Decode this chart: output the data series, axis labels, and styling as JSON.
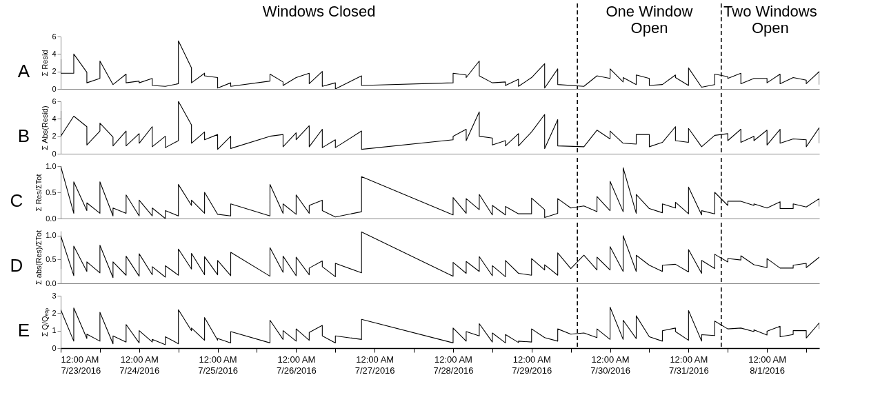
{
  "chart_data": [
    {
      "type": "line",
      "title": "A",
      "ylabel": "Σ Resid",
      "tick_labels": "y",
      "xlim": [
        "2016-07-23T00:00",
        "2016-08-01T16:00"
      ],
      "ylim": [
        0,
        6
      ],
      "yticks": [
        0,
        2,
        4,
        6
      ],
      "ref_lines": [
        {
          "axis": "x",
          "value": "2016-07-29T14:00",
          "line_style": "dashed",
          "color": "#000000"
        },
        {
          "axis": "x",
          "value": "2016-07-31T10:00",
          "line_style": "dashed",
          "color": "#000000"
        }
      ],
      "annotations": [
        "Windows Closed",
        "One Window Open",
        "Two Windows Open"
      ],
      "series": [
        {
          "color": "#000000",
          "x": [
            "2016-07-23T00:00",
            "2016-07-23T00:00",
            "2016-07-23T04:00",
            "2016-07-23T04:00",
            "2016-07-23T08:00",
            "2016-07-23T08:00",
            "2016-07-23T12:00",
            "2016-07-23T12:00",
            "2016-07-23T16:00",
            "2016-07-23T20:00",
            "2016-07-23T20:00",
            "2016-07-24T00:00",
            "2016-07-24T00:00",
            "2016-07-24T04:00",
            "2016-07-24T04:00",
            "2016-07-24T08:00",
            "2016-07-24T12:00",
            "2016-07-24T12:00",
            "2016-07-24T16:00",
            "2016-07-24T16:00",
            "2016-07-24T20:00",
            "2016-07-24T20:00",
            "2016-07-25T00:00",
            "2016-07-25T00:00",
            "2016-07-25T04:00",
            "2016-07-25T04:00",
            "2016-07-25T16:00",
            "2016-07-25T16:00",
            "2016-07-25T20:00",
            "2016-07-25T20:00",
            "2016-07-26T00:00",
            "2016-07-26T04:00",
            "2016-07-26T04:00",
            "2016-07-26T08:00",
            "2016-07-26T08:00",
            "2016-07-26T12:00",
            "2016-07-26T12:00",
            "2016-07-26T20:00",
            "2016-07-26T20:00",
            "2016-07-28T00:00",
            "2016-07-28T00:00",
            "2016-07-28T04:00",
            "2016-07-28T04:00",
            "2016-07-28T08:00",
            "2016-07-28T08:00",
            "2016-07-28T12:00",
            "2016-07-28T16:00",
            "2016-07-28T16:00",
            "2016-07-28T20:00",
            "2016-07-28T20:00",
            "2016-07-29T00:00",
            "2016-07-29T04:00",
            "2016-07-29T04:00",
            "2016-07-29T08:00",
            "2016-07-29T08:00",
            "2016-07-29T16:00",
            "2016-07-29T20:00",
            "2016-07-30T00:00",
            "2016-07-30T00:00",
            "2016-07-30T04:00",
            "2016-07-30T04:00",
            "2016-07-30T08:00",
            "2016-07-30T08:00",
            "2016-07-30T12:00",
            "2016-07-30T12:00",
            "2016-07-30T16:00",
            "2016-07-30T20:00",
            "2016-07-30T20:00",
            "2016-07-31T00:00",
            "2016-07-31T00:00",
            "2016-07-31T04:00",
            "2016-07-31T08:00",
            "2016-07-31T08:00",
            "2016-07-31T12:00",
            "2016-07-31T12:00",
            "2016-07-31T16:00",
            "2016-07-31T16:00",
            "2016-07-31T20:00",
            "2016-08-01T00:00",
            "2016-08-01T00:00",
            "2016-08-01T04:00",
            "2016-08-01T04:00",
            "2016-08-01T08:00",
            "2016-08-01T12:00",
            "2016-08-01T12:00",
            "2016-08-01T16:00",
            "2016-08-01T16:00"
          ],
          "values": [
            3.4,
            1.8,
            1.8,
            4.0,
            1.9,
            0.7,
            1.2,
            3.2,
            0.5,
            1.7,
            0.7,
            0.9,
            0.7,
            1.2,
            0.4,
            0.3,
            0.6,
            5.5,
            2.4,
            0.7,
            1.8,
            1.5,
            1.3,
            0.1,
            0.7,
            0.3,
            0.9,
            1.7,
            0.8,
            0.4,
            1.3,
            1.8,
            0.6,
            2.0,
            0.3,
            0.7,
            0.0,
            1.5,
            0.4,
            0.7,
            1.8,
            1.6,
            1.3,
            3.2,
            1.5,
            0.7,
            0.8,
            0.4,
            1.1,
            0.3,
            1.3,
            2.9,
            0.1,
            2.3,
            0.5,
            0.3,
            1.5,
            1.2,
            2.3,
            0.8,
            1.3,
            0.5,
            1.6,
            1.2,
            0.4,
            0.5,
            1.6,
            1.3,
            0.4,
            2.4,
            0.2,
            0.5,
            1.7,
            1.4,
            1.2,
            1.8,
            0.6,
            1.2,
            1.2,
            0.7,
            1.7,
            0.6,
            1.3,
            1.0,
            0.6,
            2.0,
            0.5
          ]
        }
      ]
    },
    {
      "type": "line",
      "title": "B",
      "ylabel": "Σ Abs(Resid)",
      "tick_labels": "y",
      "xlim": [
        "2016-07-23T00:00",
        "2016-08-01T16:00"
      ],
      "ylim": [
        0,
        6
      ],
      "yticks": [
        0,
        2,
        4,
        6
      ],
      "ref_lines": [
        {
          "axis": "x",
          "value": "2016-07-29T14:00",
          "line_style": "dashed",
          "color": "#000000"
        },
        {
          "axis": "x",
          "value": "2016-07-31T10:00",
          "line_style": "dashed",
          "color": "#000000"
        }
      ],
      "series": [
        {
          "color": "#000000",
          "x": [
            "2016-07-23T00:00",
            "2016-07-23T00:00",
            "2016-07-23T04:00",
            "2016-07-23T08:00",
            "2016-07-23T08:00",
            "2016-07-23T12:00",
            "2016-07-23T12:00",
            "2016-07-23T16:00",
            "2016-07-23T16:00",
            "2016-07-23T20:00",
            "2016-07-23T20:00",
            "2016-07-24T00:00",
            "2016-07-24T00:00",
            "2016-07-24T04:00",
            "2016-07-24T04:00",
            "2016-07-24T08:00",
            "2016-07-24T08:00",
            "2016-07-24T12:00",
            "2016-07-24T12:00",
            "2016-07-24T16:00",
            "2016-07-24T16:00",
            "2016-07-24T20:00",
            "2016-07-24T20:00",
            "2016-07-25T00:00",
            "2016-07-25T00:00",
            "2016-07-25T04:00",
            "2016-07-25T04:00",
            "2016-07-25T16:00",
            "2016-07-25T20:00",
            "2016-07-25T20:00",
            "2016-07-26T00:00",
            "2016-07-26T00:00",
            "2016-07-26T04:00",
            "2016-07-26T04:00",
            "2016-07-26T08:00",
            "2016-07-26T08:00",
            "2016-07-26T12:00",
            "2016-07-26T12:00",
            "2016-07-26T20:00",
            "2016-07-26T20:00",
            "2016-07-28T00:00",
            "2016-07-28T00:00",
            "2016-07-28T04:00",
            "2016-07-28T04:00",
            "2016-07-28T08:00",
            "2016-07-28T08:00",
            "2016-07-28T12:00",
            "2016-07-28T12:00",
            "2016-07-28T16:00",
            "2016-07-28T16:00",
            "2016-07-28T20:00",
            "2016-07-28T20:00",
            "2016-07-29T00:00",
            "2016-07-29T04:00",
            "2016-07-29T04:00",
            "2016-07-29T08:00",
            "2016-07-29T08:00",
            "2016-07-29T16:00",
            "2016-07-29T20:00",
            "2016-07-30T00:00",
            "2016-07-30T00:00",
            "2016-07-30T04:00",
            "2016-07-30T08:00",
            "2016-07-30T08:00",
            "2016-07-30T12:00",
            "2016-07-30T12:00",
            "2016-07-30T16:00",
            "2016-07-30T20:00",
            "2016-07-30T20:00",
            "2016-07-31T00:00",
            "2016-07-31T00:00",
            "2016-07-31T04:00",
            "2016-07-31T08:00",
            "2016-07-31T12:00",
            "2016-07-31T12:00",
            "2016-07-31T16:00",
            "2016-07-31T16:00",
            "2016-07-31T20:00",
            "2016-07-31T20:00",
            "2016-08-01T00:00",
            "2016-08-01T00:00",
            "2016-08-01T04:00",
            "2016-08-01T04:00",
            "2016-08-01T08:00",
            "2016-08-01T12:00",
            "2016-08-01T12:00",
            "2016-08-01T16:00",
            "2016-08-01T16:00"
          ],
          "values": [
            4.9,
            2.0,
            4.3,
            3.1,
            1.0,
            2.6,
            3.5,
            1.9,
            0.9,
            2.6,
            0.9,
            2.3,
            1.2,
            3.1,
            0.8,
            2.0,
            0.7,
            1.5,
            6.0,
            3.3,
            1.2,
            2.5,
            1.6,
            2.2,
            0.5,
            2.0,
            0.6,
            2.0,
            2.2,
            0.8,
            2.4,
            1.6,
            3.2,
            0.8,
            2.8,
            0.7,
            1.6,
            0.7,
            2.6,
            0.5,
            1.6,
            2.0,
            2.8,
            1.5,
            4.8,
            2.0,
            1.8,
            1.0,
            1.5,
            0.9,
            2.3,
            0.9,
            2.5,
            4.5,
            0.6,
            3.9,
            0.9,
            0.8,
            2.7,
            1.7,
            2.6,
            1.2,
            1.1,
            2.2,
            2.2,
            0.8,
            1.3,
            3.1,
            1.5,
            1.3,
            2.9,
            0.8,
            2.1,
            2.3,
            1.5,
            2.8,
            1.3,
            2.0,
            1.5,
            2.7,
            1.0,
            2.8,
            1.2,
            1.7,
            1.6,
            0.8,
            3.0,
            1.2
          ]
        }
      ]
    },
    {
      "type": "line",
      "title": "C",
      "ylabel": "Σ Res/ΣTot",
      "tick_labels": "y",
      "xlim": [
        "2016-07-23T00:00",
        "2016-08-01T16:00"
      ],
      "ylim": [
        0,
        1.0
      ],
      "yticks": [
        {
          "value": 0,
          "label": "0.0"
        },
        {
          "value": 0.5,
          "label": "0.5"
        },
        {
          "value": 1,
          "label": "1.0"
        }
      ],
      "ref_lines": [
        {
          "axis": "x",
          "value": "2016-07-29T14:00",
          "line_style": "dashed",
          "color": "#000000"
        },
        {
          "axis": "x",
          "value": "2016-07-31T10:00",
          "line_style": "dashed",
          "color": "#000000"
        }
      ],
      "series": [
        {
          "color": "#000000",
          "x": [
            "2016-07-23T00:00",
            "2016-07-23T04:00",
            "2016-07-23T04:00",
            "2016-07-23T08:00",
            "2016-07-23T08:00",
            "2016-07-23T12:00",
            "2016-07-23T12:00",
            "2016-07-23T16:00",
            "2016-07-23T16:00",
            "2016-07-23T20:00",
            "2016-07-23T20:00",
            "2016-07-24T00:00",
            "2016-07-24T00:00",
            "2016-07-24T04:00",
            "2016-07-24T04:00",
            "2016-07-24T08:00",
            "2016-07-24T08:00",
            "2016-07-24T12:00",
            "2016-07-24T12:00",
            "2016-07-24T16:00",
            "2016-07-24T16:00",
            "2016-07-24T20:00",
            "2016-07-24T20:00",
            "2016-07-25T00:00",
            "2016-07-25T04:00",
            "2016-07-25T04:00",
            "2016-07-25T16:00",
            "2016-07-25T16:00",
            "2016-07-25T20:00",
            "2016-07-25T20:00",
            "2016-07-26T00:00",
            "2016-07-26T00:00",
            "2016-07-26T04:00",
            "2016-07-26T04:00",
            "2016-07-26T08:00",
            "2016-07-26T08:00",
            "2016-07-26T12:00",
            "2016-07-26T20:00",
            "2016-07-26T20:00",
            "2016-07-28T00:00",
            "2016-07-28T00:00",
            "2016-07-28T04:00",
            "2016-07-28T04:00",
            "2016-07-28T08:00",
            "2016-07-28T08:00",
            "2016-07-28T12:00",
            "2016-07-28T12:00",
            "2016-07-28T16:00",
            "2016-07-28T16:00",
            "2016-07-28T20:00",
            "2016-07-29T00:00",
            "2016-07-29T00:00",
            "2016-07-29T04:00",
            "2016-07-29T04:00",
            "2016-07-29T08:00",
            "2016-07-29T08:00",
            "2016-07-29T12:00",
            "2016-07-29T16:00",
            "2016-07-29T20:00",
            "2016-07-29T20:00",
            "2016-07-30T00:00",
            "2016-07-30T00:00",
            "2016-07-30T04:00",
            "2016-07-30T04:00",
            "2016-07-30T08:00",
            "2016-07-30T08:00",
            "2016-07-30T12:00",
            "2016-07-30T16:00",
            "2016-07-30T16:00",
            "2016-07-30T20:00",
            "2016-07-30T20:00",
            "2016-07-31T00:00",
            "2016-07-31T00:00",
            "2016-07-31T04:00",
            "2016-07-31T04:00",
            "2016-07-31T08:00",
            "2016-07-31T08:00",
            "2016-07-31T12:00",
            "2016-07-31T12:00",
            "2016-07-31T16:00",
            "2016-07-31T20:00",
            "2016-07-31T20:00",
            "2016-08-01T00:00",
            "2016-08-01T04:00",
            "2016-08-01T04:00",
            "2016-08-01T08:00",
            "2016-08-01T08:00",
            "2016-08-01T12:00",
            "2016-08-01T16:00",
            "2016-08-01T16:00"
          ],
          "values": [
            1.0,
            0.1,
            0.7,
            0.15,
            0.3,
            0.1,
            0.7,
            0.05,
            0.2,
            0.1,
            0.45,
            0.05,
            0.35,
            0.05,
            0.2,
            0.0,
            0.15,
            0.05,
            0.65,
            0.25,
            0.35,
            0.1,
            0.5,
            0.08,
            0.05,
            0.28,
            0.05,
            0.65,
            0.1,
            0.28,
            0.08,
            0.45,
            0.1,
            0.25,
            0.35,
            0.15,
            0.03,
            0.13,
            0.8,
            0.07,
            0.4,
            0.1,
            0.38,
            0.17,
            0.46,
            0.07,
            0.25,
            0.07,
            0.23,
            0.09,
            0.09,
            0.39,
            0.17,
            0.02,
            0.1,
            0.38,
            0.2,
            0.24,
            0.13,
            0.42,
            0.15,
            0.71,
            0.13,
            0.97,
            0.1,
            0.46,
            0.19,
            0.11,
            0.28,
            0.2,
            0.31,
            0.09,
            0.6,
            0.07,
            0.15,
            0.09,
            0.5,
            0.25,
            0.33,
            0.33,
            0.25,
            0.28,
            0.2,
            0.32,
            0.19,
            0.19,
            0.28,
            0.22,
            0.38,
            0.23
          ]
        }
      ]
    },
    {
      "type": "line",
      "title": "D",
      "ylabel": "Σ abs(Res)/ΣTot",
      "tick_labels": "y",
      "xlim": [
        "2016-07-23T00:00",
        "2016-08-01T16:00"
      ],
      "ylim": [
        0,
        1.1
      ],
      "yticks": [
        {
          "value": 0,
          "label": "0.0"
        },
        {
          "value": 0.5,
          "label": "0.5"
        },
        {
          "value": 1,
          "label": "1.0"
        }
      ],
      "ref_lines": [
        {
          "axis": "x",
          "value": "2016-07-29T14:00",
          "line_style": "dashed",
          "color": "#000000"
        },
        {
          "axis": "x",
          "value": "2016-07-31T10:00",
          "line_style": "dashed",
          "color": "#000000"
        }
      ],
      "series": [
        {
          "color": "#000000",
          "x": [
            "2016-07-23T00:00",
            "2016-07-23T00:00",
            "2016-07-23T04:00",
            "2016-07-23T04:00",
            "2016-07-23T08:00",
            "2016-07-23T08:00",
            "2016-07-23T12:00",
            "2016-07-23T12:00",
            "2016-07-23T16:00",
            "2016-07-23T16:00",
            "2016-07-23T20:00",
            "2016-07-23T20:00",
            "2016-07-24T00:00",
            "2016-07-24T00:00",
            "2016-07-24T04:00",
            "2016-07-24T04:00",
            "2016-07-24T08:00",
            "2016-07-24T08:00",
            "2016-07-24T12:00",
            "2016-07-24T12:00",
            "2016-07-24T16:00",
            "2016-07-24T16:00",
            "2016-07-24T20:00",
            "2016-07-24T20:00",
            "2016-07-25T00:00",
            "2016-07-25T00:00",
            "2016-07-25T04:00",
            "2016-07-25T04:00",
            "2016-07-25T16:00",
            "2016-07-25T16:00",
            "2016-07-25T20:00",
            "2016-07-25T20:00",
            "2016-07-26T00:00",
            "2016-07-26T00:00",
            "2016-07-26T04:00",
            "2016-07-26T04:00",
            "2016-07-26T08:00",
            "2016-07-26T08:00",
            "2016-07-26T12:00",
            "2016-07-26T12:00",
            "2016-07-26T20:00",
            "2016-07-26T20:00",
            "2016-07-28T00:00",
            "2016-07-28T00:00",
            "2016-07-28T04:00",
            "2016-07-28T04:00",
            "2016-07-28T08:00",
            "2016-07-28T08:00",
            "2016-07-28T12:00",
            "2016-07-28T12:00",
            "2016-07-28T16:00",
            "2016-07-28T16:00",
            "2016-07-28T20:00",
            "2016-07-29T00:00",
            "2016-07-29T00:00",
            "2016-07-29T04:00",
            "2016-07-29T04:00",
            "2016-07-29T08:00",
            "2016-07-29T08:00",
            "2016-07-29T12:00",
            "2016-07-29T16:00",
            "2016-07-29T20:00",
            "2016-07-29T20:00",
            "2016-07-30T00:00",
            "2016-07-30T00:00",
            "2016-07-30T04:00",
            "2016-07-30T04:00",
            "2016-07-30T08:00",
            "2016-07-30T08:00",
            "2016-07-30T12:00",
            "2016-07-30T16:00",
            "2016-07-30T16:00",
            "2016-07-30T20:00",
            "2016-07-31T00:00",
            "2016-07-31T00:00",
            "2016-07-31T04:00",
            "2016-07-31T04:00",
            "2016-07-31T08:00",
            "2016-07-31T08:00",
            "2016-07-31T12:00",
            "2016-07-31T12:00",
            "2016-07-31T16:00",
            "2016-07-31T16:00",
            "2016-07-31T20:00",
            "2016-08-01T00:00",
            "2016-08-01T00:00",
            "2016-08-01T04:00",
            "2016-08-01T08:00",
            "2016-08-01T08:00",
            "2016-08-01T12:00",
            "2016-08-01T12:00",
            "2016-08-01T16:00"
          ],
          "values": [
            0.3,
            1.0,
            0.16,
            0.78,
            0.25,
            0.45,
            0.22,
            0.8,
            0.12,
            0.45,
            0.17,
            0.57,
            0.15,
            0.62,
            0.18,
            0.35,
            0.13,
            0.37,
            0.17,
            0.72,
            0.3,
            0.63,
            0.18,
            0.56,
            0.18,
            0.48,
            0.16,
            0.65,
            0.15,
            0.75,
            0.23,
            0.57,
            0.16,
            0.55,
            0.18,
            0.32,
            0.47,
            0.35,
            0.14,
            0.42,
            0.22,
            1.08,
            0.15,
            0.44,
            0.21,
            0.46,
            0.25,
            0.56,
            0.16,
            0.37,
            0.14,
            0.48,
            0.21,
            0.17,
            0.52,
            0.28,
            0.39,
            0.17,
            0.64,
            0.31,
            0.59,
            0.28,
            0.55,
            0.28,
            0.77,
            0.25,
            1.0,
            0.25,
            0.59,
            0.38,
            0.25,
            0.38,
            0.4,
            0.24,
            0.71,
            0.21,
            0.48,
            0.31,
            0.61,
            0.45,
            0.52,
            0.49,
            0.58,
            0.39,
            0.33,
            0.52,
            0.32,
            0.32,
            0.38,
            0.42,
            0.33,
            0.55
          ]
        }
      ]
    },
    {
      "type": "line",
      "title": "E",
      "ylabel": "Σ Q/Qₑₓₚ",
      "xlim": [
        "2016-07-23T00:00",
        "2016-08-01T16:00"
      ],
      "xticks": [
        {
          "value": "2016-07-23T00:00",
          "label": "12:00 AM 7/23/2016"
        },
        {
          "value": "2016-07-23T12:00",
          "label": null
        },
        {
          "value": "2016-07-24T00:00",
          "label": "12:00 AM 7/24/2016"
        },
        {
          "value": "2016-07-24T12:00",
          "label": null
        },
        {
          "value": "2016-07-25T00:00",
          "label": "12:00 AM 7/25/2016"
        },
        {
          "value": "2016-07-25T12:00",
          "label": null
        },
        {
          "value": "2016-07-26T00:00",
          "label": "12:00 AM 7/26/2016"
        },
        {
          "value": "2016-07-26T12:00",
          "label": null
        },
        {
          "value": "2016-07-27T00:00",
          "label": "12:00 AM 7/27/2016"
        },
        {
          "value": "2016-07-27T12:00",
          "label": null
        },
        {
          "value": "2016-07-28T00:00",
          "label": "12:00 AM 7/28/2016"
        },
        {
          "value": "2016-07-28T12:00",
          "label": null
        },
        {
          "value": "2016-07-29T00:00",
          "label": "12:00 AM 7/29/2016"
        },
        {
          "value": "2016-07-29T12:00",
          "label": null
        },
        {
          "value": "2016-07-30T00:00",
          "label": "12:00 AM 7/30/2016"
        },
        {
          "value": "2016-07-30T12:00",
          "label": null
        },
        {
          "value": "2016-07-31T00:00",
          "label": "12:00 AM 7/31/2016"
        },
        {
          "value": "2016-07-31T12:00",
          "label": null
        },
        {
          "value": "2016-08-01T00:00",
          "label": "12:00 AM 8/1/2016"
        },
        {
          "value": "2016-08-01T12:00",
          "label": null
        }
      ],
      "ylim": [
        0,
        3
      ],
      "yticks": [
        0,
        1,
        2,
        3
      ],
      "ref_lines": [
        {
          "axis": "x",
          "value": "2016-07-29T14:00",
          "line_style": "dashed",
          "color": "#000000"
        },
        {
          "axis": "x",
          "value": "2016-07-31T10:00",
          "line_style": "dashed",
          "color": "#000000"
        }
      ],
      "series": [
        {
          "color": "#000000",
          "x": [
            "2016-07-23T00:00",
            "2016-07-23T04:00",
            "2016-07-23T04:00",
            "2016-07-23T08:00",
            "2016-07-23T08:00",
            "2016-07-23T12:00",
            "2016-07-23T12:00",
            "2016-07-23T16:00",
            "2016-07-23T16:00",
            "2016-07-23T20:00",
            "2016-07-23T20:00",
            "2016-07-24T00:00",
            "2016-07-24T00:00",
            "2016-07-24T04:00",
            "2016-07-24T04:00",
            "2016-07-24T08:00",
            "2016-07-24T08:00",
            "2016-07-24T12:00",
            "2016-07-24T12:00",
            "2016-07-24T16:00",
            "2016-07-24T16:00",
            "2016-07-24T20:00",
            "2016-07-24T20:00",
            "2016-07-25T00:00",
            "2016-07-25T00:00",
            "2016-07-25T04:00",
            "2016-07-25T04:00",
            "2016-07-25T16:00",
            "2016-07-25T16:00",
            "2016-07-25T20:00",
            "2016-07-25T20:00",
            "2016-07-26T00:00",
            "2016-07-26T00:00",
            "2016-07-26T04:00",
            "2016-07-26T04:00",
            "2016-07-26T08:00",
            "2016-07-26T08:00",
            "2016-07-26T12:00",
            "2016-07-26T12:00",
            "2016-07-26T20:00",
            "2016-07-26T20:00",
            "2016-07-28T00:00",
            "2016-07-28T00:00",
            "2016-07-28T04:00",
            "2016-07-28T04:00",
            "2016-07-28T08:00",
            "2016-07-28T08:00",
            "2016-07-28T12:00",
            "2016-07-28T12:00",
            "2016-07-28T16:00",
            "2016-07-28T16:00",
            "2016-07-28T20:00",
            "2016-07-28T20:00",
            "2016-07-29T00:00",
            "2016-07-29T00:00",
            "2016-07-29T04:00",
            "2016-07-29T08:00",
            "2016-07-29T08:00",
            "2016-07-29T12:00",
            "2016-07-29T16:00",
            "2016-07-29T20:00",
            "2016-07-29T20:00",
            "2016-07-30T00:00",
            "2016-07-30T00:00",
            "2016-07-30T04:00",
            "2016-07-30T04:00",
            "2016-07-30T08:00",
            "2016-07-30T08:00",
            "2016-07-30T12:00",
            "2016-07-30T16:00",
            "2016-07-30T16:00",
            "2016-07-30T20:00",
            "2016-07-30T20:00",
            "2016-07-31T00:00",
            "2016-07-31T00:00",
            "2016-07-31T04:00",
            "2016-07-31T04:00",
            "2016-07-31T08:00",
            "2016-07-31T08:00",
            "2016-07-31T12:00",
            "2016-07-31T16:00",
            "2016-07-31T20:00",
            "2016-07-31T20:00",
            "2016-08-01T00:00",
            "2016-08-01T00:00",
            "2016-08-01T04:00",
            "2016-08-01T04:00",
            "2016-08-01T08:00",
            "2016-08-01T08:00",
            "2016-08-01T12:00",
            "2016-08-01T12:00",
            "2016-08-01T16:00",
            "2016-08-01T16:00"
          ],
          "values": [
            2.2,
            0.4,
            2.3,
            0.55,
            0.8,
            0.4,
            2.05,
            0.25,
            0.7,
            0.35,
            1.35,
            0.3,
            1.0,
            0.35,
            0.5,
            0.2,
            0.65,
            0.25,
            2.2,
            1.0,
            1.15,
            0.45,
            1.75,
            0.45,
            0.55,
            0.3,
            0.95,
            0.3,
            1.6,
            0.5,
            1.0,
            0.4,
            1.1,
            0.45,
            0.9,
            1.3,
            0.7,
            0.3,
            0.7,
            0.5,
            1.65,
            0.3,
            1.15,
            0.4,
            0.95,
            0.7,
            1.4,
            0.35,
            0.87,
            0.3,
            0.78,
            0.32,
            0.4,
            0.35,
            1.1,
            0.6,
            0.4,
            1.1,
            0.8,
            0.87,
            0.6,
            1.1,
            0.5,
            2.35,
            0.5,
            1.6,
            0.55,
            1.85,
            0.65,
            0.4,
            1.0,
            1.15,
            0.95,
            0.45,
            2.15,
            0.4,
            0.77,
            0.72,
            1.55,
            1.1,
            1.15,
            0.95,
            1.05,
            0.75,
            0.97,
            1.25,
            0.65,
            0.78,
            1.0,
            1.0,
            0.58,
            1.45,
            1.1
          ]
        }
      ]
    }
  ]
}
